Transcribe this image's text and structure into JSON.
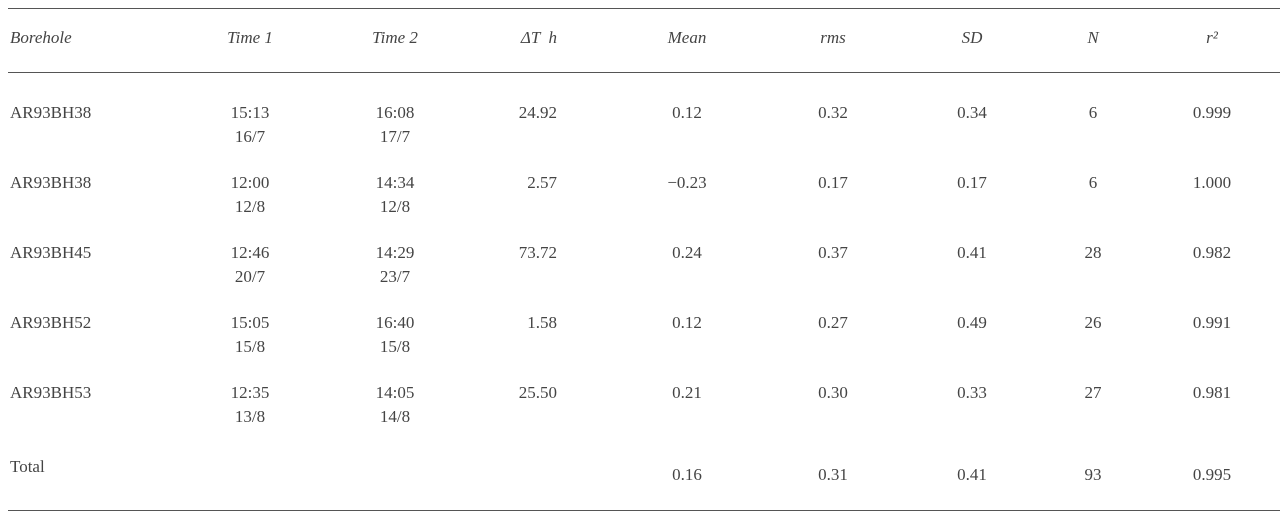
{
  "table": {
    "headers": [
      "Borehole",
      "Time 1",
      "Time 2",
      "ΔT  h",
      "Mean",
      "rms",
      "SD",
      "N",
      "r²"
    ],
    "rows": [
      {
        "borehole": "AR93BH38",
        "time1": [
          "15:13",
          "16/7"
        ],
        "time2": [
          "16:08",
          "17/7"
        ],
        "dt": "24.92",
        "mean": "0.12",
        "rms": "0.32",
        "sd": "0.34",
        "n": "6",
        "r2": "0.999"
      },
      {
        "borehole": "AR93BH38",
        "time1": [
          "12:00",
          "12/8"
        ],
        "time2": [
          "14:34",
          "12/8"
        ],
        "dt": "2.57",
        "mean": "−0.23",
        "rms": "0.17",
        "sd": "0.17",
        "n": "6",
        "r2": "1.000"
      },
      {
        "borehole": "AR93BH45",
        "time1": [
          "12:46",
          "20/7"
        ],
        "time2": [
          "14:29",
          "23/7"
        ],
        "dt": "73.72",
        "mean": "0.24",
        "rms": "0.37",
        "sd": "0.41",
        "n": "28",
        "r2": "0.982"
      },
      {
        "borehole": "AR93BH52",
        "time1": [
          "15:05",
          "15/8"
        ],
        "time2": [
          "16:40",
          "15/8"
        ],
        "dt": "1.58",
        "mean": "0.12",
        "rms": "0.27",
        "sd": "0.49",
        "n": "26",
        "r2": "0.991"
      },
      {
        "borehole": "AR93BH53",
        "time1": [
          "12:35",
          "13/8"
        ],
        "time2": [
          "14:05",
          "14/8"
        ],
        "dt": "25.50",
        "mean": "0.21",
        "rms": "0.30",
        "sd": "0.33",
        "n": "27",
        "r2": "0.981"
      }
    ],
    "total": {
      "label": "Total",
      "mean": "0.16",
      "rms": "0.31",
      "sd": "0.41",
      "n": "93",
      "r2": "0.995"
    }
  }
}
